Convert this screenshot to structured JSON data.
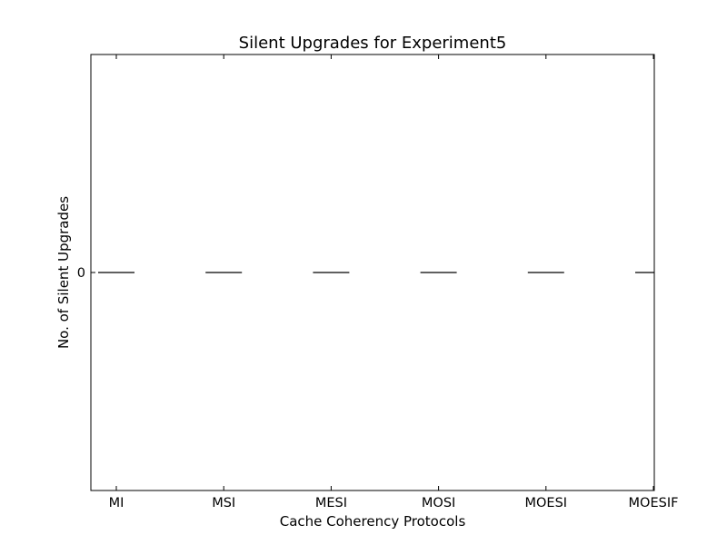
{
  "chart_data": {
    "type": "bar",
    "title": "Silent Upgrades for Experiment5",
    "xlabel": "Cache Coherency Protocols",
    "ylabel": "No. of Silent Upgrades",
    "categories": [
      "MI",
      "MSI",
      "MESI",
      "MOSI",
      "MOESI",
      "MOESIF"
    ],
    "values": [
      0,
      0,
      0,
      0,
      0,
      0
    ],
    "yticks": [
      "0"
    ],
    "ylim": [
      -0.06,
      0.06
    ],
    "grid": false,
    "colors": {
      "bar_edge": "#000000",
      "axes": "#000000",
      "background": "#ffffff"
    }
  }
}
